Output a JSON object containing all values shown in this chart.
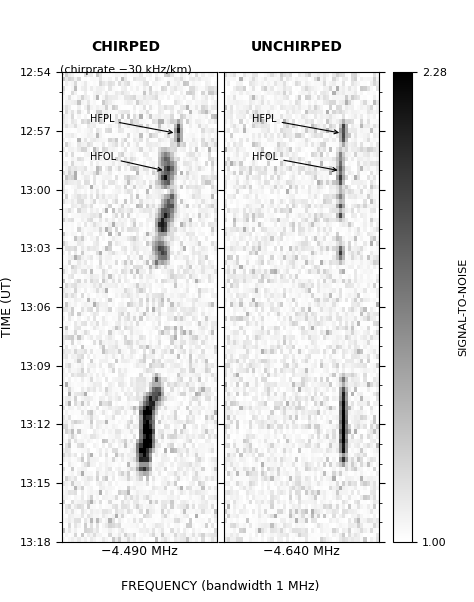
{
  "title_left": "CHIRPED",
  "subtitle_left": "(chirprate −30 kHz/km)",
  "title_right": "UNCHIRPED",
  "xlabel_center": "−4.490 MHz",
  "xlabel_right": "−4.640 MHz",
  "xlabel_bottom": "FREQUENCY (bandwidth 1 MHz)",
  "ylabel": "TIME (UT)",
  "colorbar_label": "SIGNAL-TO-NOISE",
  "colorbar_min": 1.0,
  "colorbar_max": 2.28,
  "time_ticks": [
    "12:54",
    "12:57",
    "13:00",
    "13:03",
    "13:06",
    "13:09",
    "13:12",
    "13:15",
    "13:18"
  ],
  "noise_seed": 42,
  "img_rows": 100,
  "img_cols": 50,
  "background_color": "#ffffff"
}
